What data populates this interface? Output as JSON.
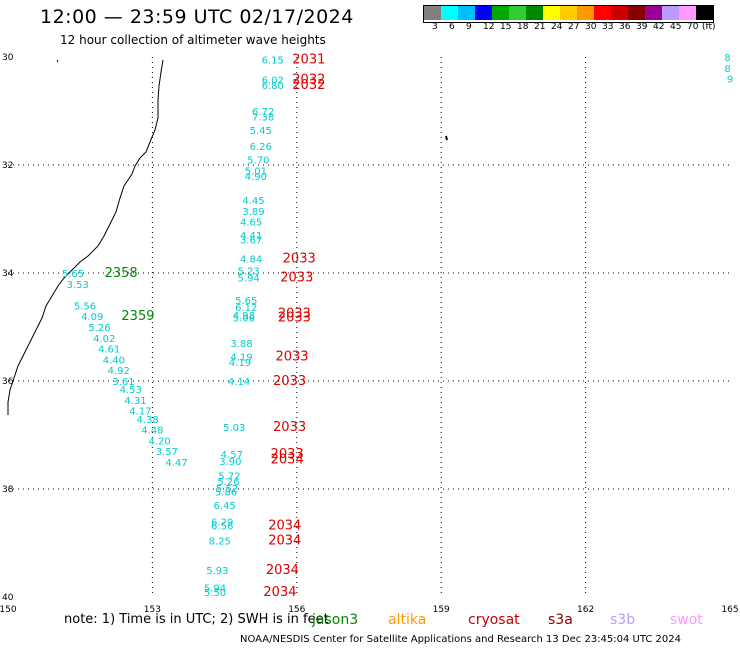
{
  "title": "12:00 — 23:59 UTC 02/17/2024",
  "subtitle": "12 hour collection of altimeter wave heights",
  "scale": {
    "colors": [
      "#808080",
      "#00ffff",
      "#00bfff",
      "#0000ff",
      "#00aa00",
      "#33cc33",
      "#008800",
      "#ffff00",
      "#ffcc00",
      "#ff9900",
      "#ff0000",
      "#cc0000",
      "#880000",
      "#990099",
      "#bb99ff",
      "#ff99ff",
      "#000000"
    ],
    "labels": [
      "3",
      "6",
      "9",
      "12",
      "15",
      "18",
      "21",
      "24",
      "27",
      "30",
      "33",
      "36",
      "39",
      "42",
      "45",
      "70",
      "(ft)"
    ]
  },
  "map": {
    "lon_range": [
      150,
      165
    ],
    "lat_range": [
      -40,
      -30
    ],
    "lon_ticks": [
      "150",
      "153",
      "156",
      "159",
      "162",
      "165"
    ],
    "lat_ticks": [
      "30",
      "32",
      "34",
      "36",
      "38",
      "40"
    ],
    "grid": "dotted"
  },
  "labels_cyan": [
    {
      "v": "6.15",
      "lon": 155.5,
      "lat": -30.05
    },
    {
      "v": "6.02",
      "lon": 155.5,
      "lat": -30.42
    },
    {
      "v": "6.80",
      "lon": 155.5,
      "lat": -30.52
    },
    {
      "v": "6.72",
      "lon": 155.3,
      "lat": -31.0
    },
    {
      "v": "7.38",
      "lon": 155.3,
      "lat": -31.1
    },
    {
      "v": "5.45",
      "lon": 155.25,
      "lat": -31.35
    },
    {
      "v": "6.26",
      "lon": 155.25,
      "lat": -31.65
    },
    {
      "v": "5.70",
      "lon": 155.2,
      "lat": -31.9
    },
    {
      "v": "5.01",
      "lon": 155.15,
      "lat": -32.1
    },
    {
      "v": "4.90",
      "lon": 155.15,
      "lat": -32.2
    },
    {
      "v": "4.45",
      "lon": 155.1,
      "lat": -32.65
    },
    {
      "v": "3.89",
      "lon": 155.1,
      "lat": -32.85
    },
    {
      "v": "4.65",
      "lon": 155.05,
      "lat": -33.05
    },
    {
      "v": "4.41",
      "lon": 155.05,
      "lat": -33.3
    },
    {
      "v": "3.67",
      "lon": 155.05,
      "lat": -33.38
    },
    {
      "v": "4.84",
      "lon": 155.05,
      "lat": -33.73
    },
    {
      "v": "5.23",
      "lon": 155.0,
      "lat": -33.95
    },
    {
      "v": "5.94",
      "lon": 155.0,
      "lat": -34.08
    },
    {
      "v": "5.65",
      "lon": 154.95,
      "lat": -34.5
    },
    {
      "v": "6.12",
      "lon": 154.95,
      "lat": -34.63
    },
    {
      "v": "4.98",
      "lon": 154.9,
      "lat": -34.78
    },
    {
      "v": "5.06",
      "lon": 154.9,
      "lat": -34.82
    },
    {
      "v": "3.88",
      "lon": 154.85,
      "lat": -35.3
    },
    {
      "v": "4.19",
      "lon": 154.85,
      "lat": -35.55
    },
    {
      "v": "4.19",
      "lon": 154.82,
      "lat": -35.65
    },
    {
      "v": "4.14",
      "lon": 154.8,
      "lat": -36.0
    },
    {
      "v": "5.03",
      "lon": 154.7,
      "lat": -36.85
    },
    {
      "v": "4.57",
      "lon": 154.65,
      "lat": -37.35
    },
    {
      "v": "3.90",
      "lon": 154.62,
      "lat": -37.48
    },
    {
      "v": "5.72",
      "lon": 154.6,
      "lat": -37.75
    },
    {
      "v": "5.26",
      "lon": 154.58,
      "lat": -37.85
    },
    {
      "v": "5.52",
      "lon": 154.55,
      "lat": -37.98
    },
    {
      "v": "5.86",
      "lon": 154.53,
      "lat": -38.05
    },
    {
      "v": "6.45",
      "lon": 154.5,
      "lat": -38.3
    },
    {
      "v": "6.29",
      "lon": 154.45,
      "lat": -38.6
    },
    {
      "v": "6.56",
      "lon": 154.45,
      "lat": -38.68
    },
    {
      "v": "8.25",
      "lon": 154.4,
      "lat": -38.95
    },
    {
      "v": "5.93",
      "lon": 154.35,
      "lat": -39.5
    },
    {
      "v": "5.94",
      "lon": 154.3,
      "lat": -39.82
    },
    {
      "v": "5.50",
      "lon": 154.3,
      "lat": -40.0
    },
    {
      "v": "5.65",
      "lon": 151.35,
      "lat": -34.0
    },
    {
      "v": "3.53",
      "lon": 151.45,
      "lat": -34.2
    },
    {
      "v": "5.56",
      "lon": 151.6,
      "lat": -34.6
    },
    {
      "v": "4.09",
      "lon": 151.75,
      "lat": -34.8
    },
    {
      "v": "5.26",
      "lon": 151.9,
      "lat": -35.0
    },
    {
      "v": "4.02",
      "lon": 152.0,
      "lat": -35.2
    },
    {
      "v": "4.61",
      "lon": 152.1,
      "lat": -35.4
    },
    {
      "v": "4.40",
      "lon": 152.2,
      "lat": -35.6
    },
    {
      "v": "4.92",
      "lon": 152.3,
      "lat": -35.8
    },
    {
      "v": "3.61",
      "lon": 152.4,
      "lat": -36.0
    },
    {
      "v": "4.53",
      "lon": 152.55,
      "lat": -36.15
    },
    {
      "v": "4.31",
      "lon": 152.65,
      "lat": -36.35
    },
    {
      "v": "4.17",
      "lon": 152.75,
      "lat": -36.55
    },
    {
      "v": "4.38",
      "lon": 152.9,
      "lat": -36.7
    },
    {
      "v": "4.48",
      "lon": 153.0,
      "lat": -36.9
    },
    {
      "v": "4.20",
      "lon": 153.15,
      "lat": -37.1
    },
    {
      "v": "3.57",
      "lon": 153.3,
      "lat": -37.3
    },
    {
      "v": "4.47",
      "lon": 153.5,
      "lat": -37.5
    },
    {
      "v": "8",
      "lon": 164.95,
      "lat": -30.0
    },
    {
      "v": "8",
      "lon": 164.95,
      "lat": -30.2
    },
    {
      "v": "9",
      "lon": 165.0,
      "lat": -30.4
    }
  ],
  "labels_red": [
    {
      "v": "2031",
      "lon": 156.25,
      "lat": -30.05
    },
    {
      "v": "2032",
      "lon": 156.25,
      "lat": -30.42
    },
    {
      "v": "2032",
      "lon": 156.25,
      "lat": -30.52
    },
    {
      "v": "2033",
      "lon": 156.05,
      "lat": -33.73
    },
    {
      "v": "2033",
      "lon": 156.0,
      "lat": -34.08
    },
    {
      "v": "2033",
      "lon": 155.95,
      "lat": -34.75
    },
    {
      "v": "2033",
      "lon": 155.95,
      "lat": -34.82
    },
    {
      "v": "2033",
      "lon": 155.9,
      "lat": -35.55
    },
    {
      "v": "2033",
      "lon": 155.85,
      "lat": -36.0
    },
    {
      "v": "2033",
      "lon": 155.85,
      "lat": -36.85
    },
    {
      "v": "2033",
      "lon": 155.8,
      "lat": -37.35
    },
    {
      "v": "2034",
      "lon": 155.8,
      "lat": -37.45
    },
    {
      "v": "2034",
      "lon": 155.75,
      "lat": -38.68
    },
    {
      "v": "2034",
      "lon": 155.75,
      "lat": -38.95
    },
    {
      "v": "2034",
      "lon": 155.7,
      "lat": -39.5
    },
    {
      "v": "2034",
      "lon": 155.65,
      "lat": -40.0
    }
  ],
  "labels_green": [
    {
      "v": "2358",
      "lon": 152.35,
      "lat": -34.0
    },
    {
      "v": "2359",
      "lon": 152.7,
      "lat": -34.8
    }
  ],
  "note": "note: 1) Time is in UTC; 2) SWH is in feet",
  "legend": [
    {
      "name": "jason3",
      "color": "#008800"
    },
    {
      "name": "altika",
      "color": "#ff9900"
    },
    {
      "name": "cryosat",
      "color": "#cc0000"
    },
    {
      "name": "s3a",
      "color": "#880000"
    },
    {
      "name": "s3b",
      "color": "#bb99ff"
    },
    {
      "name": "swot",
      "color": "#ff99ff"
    }
  ],
  "credit": "NOAA/NESDIS Center for Satellite Applications and Research    13 Dec 23:45:04 UTC 2024"
}
